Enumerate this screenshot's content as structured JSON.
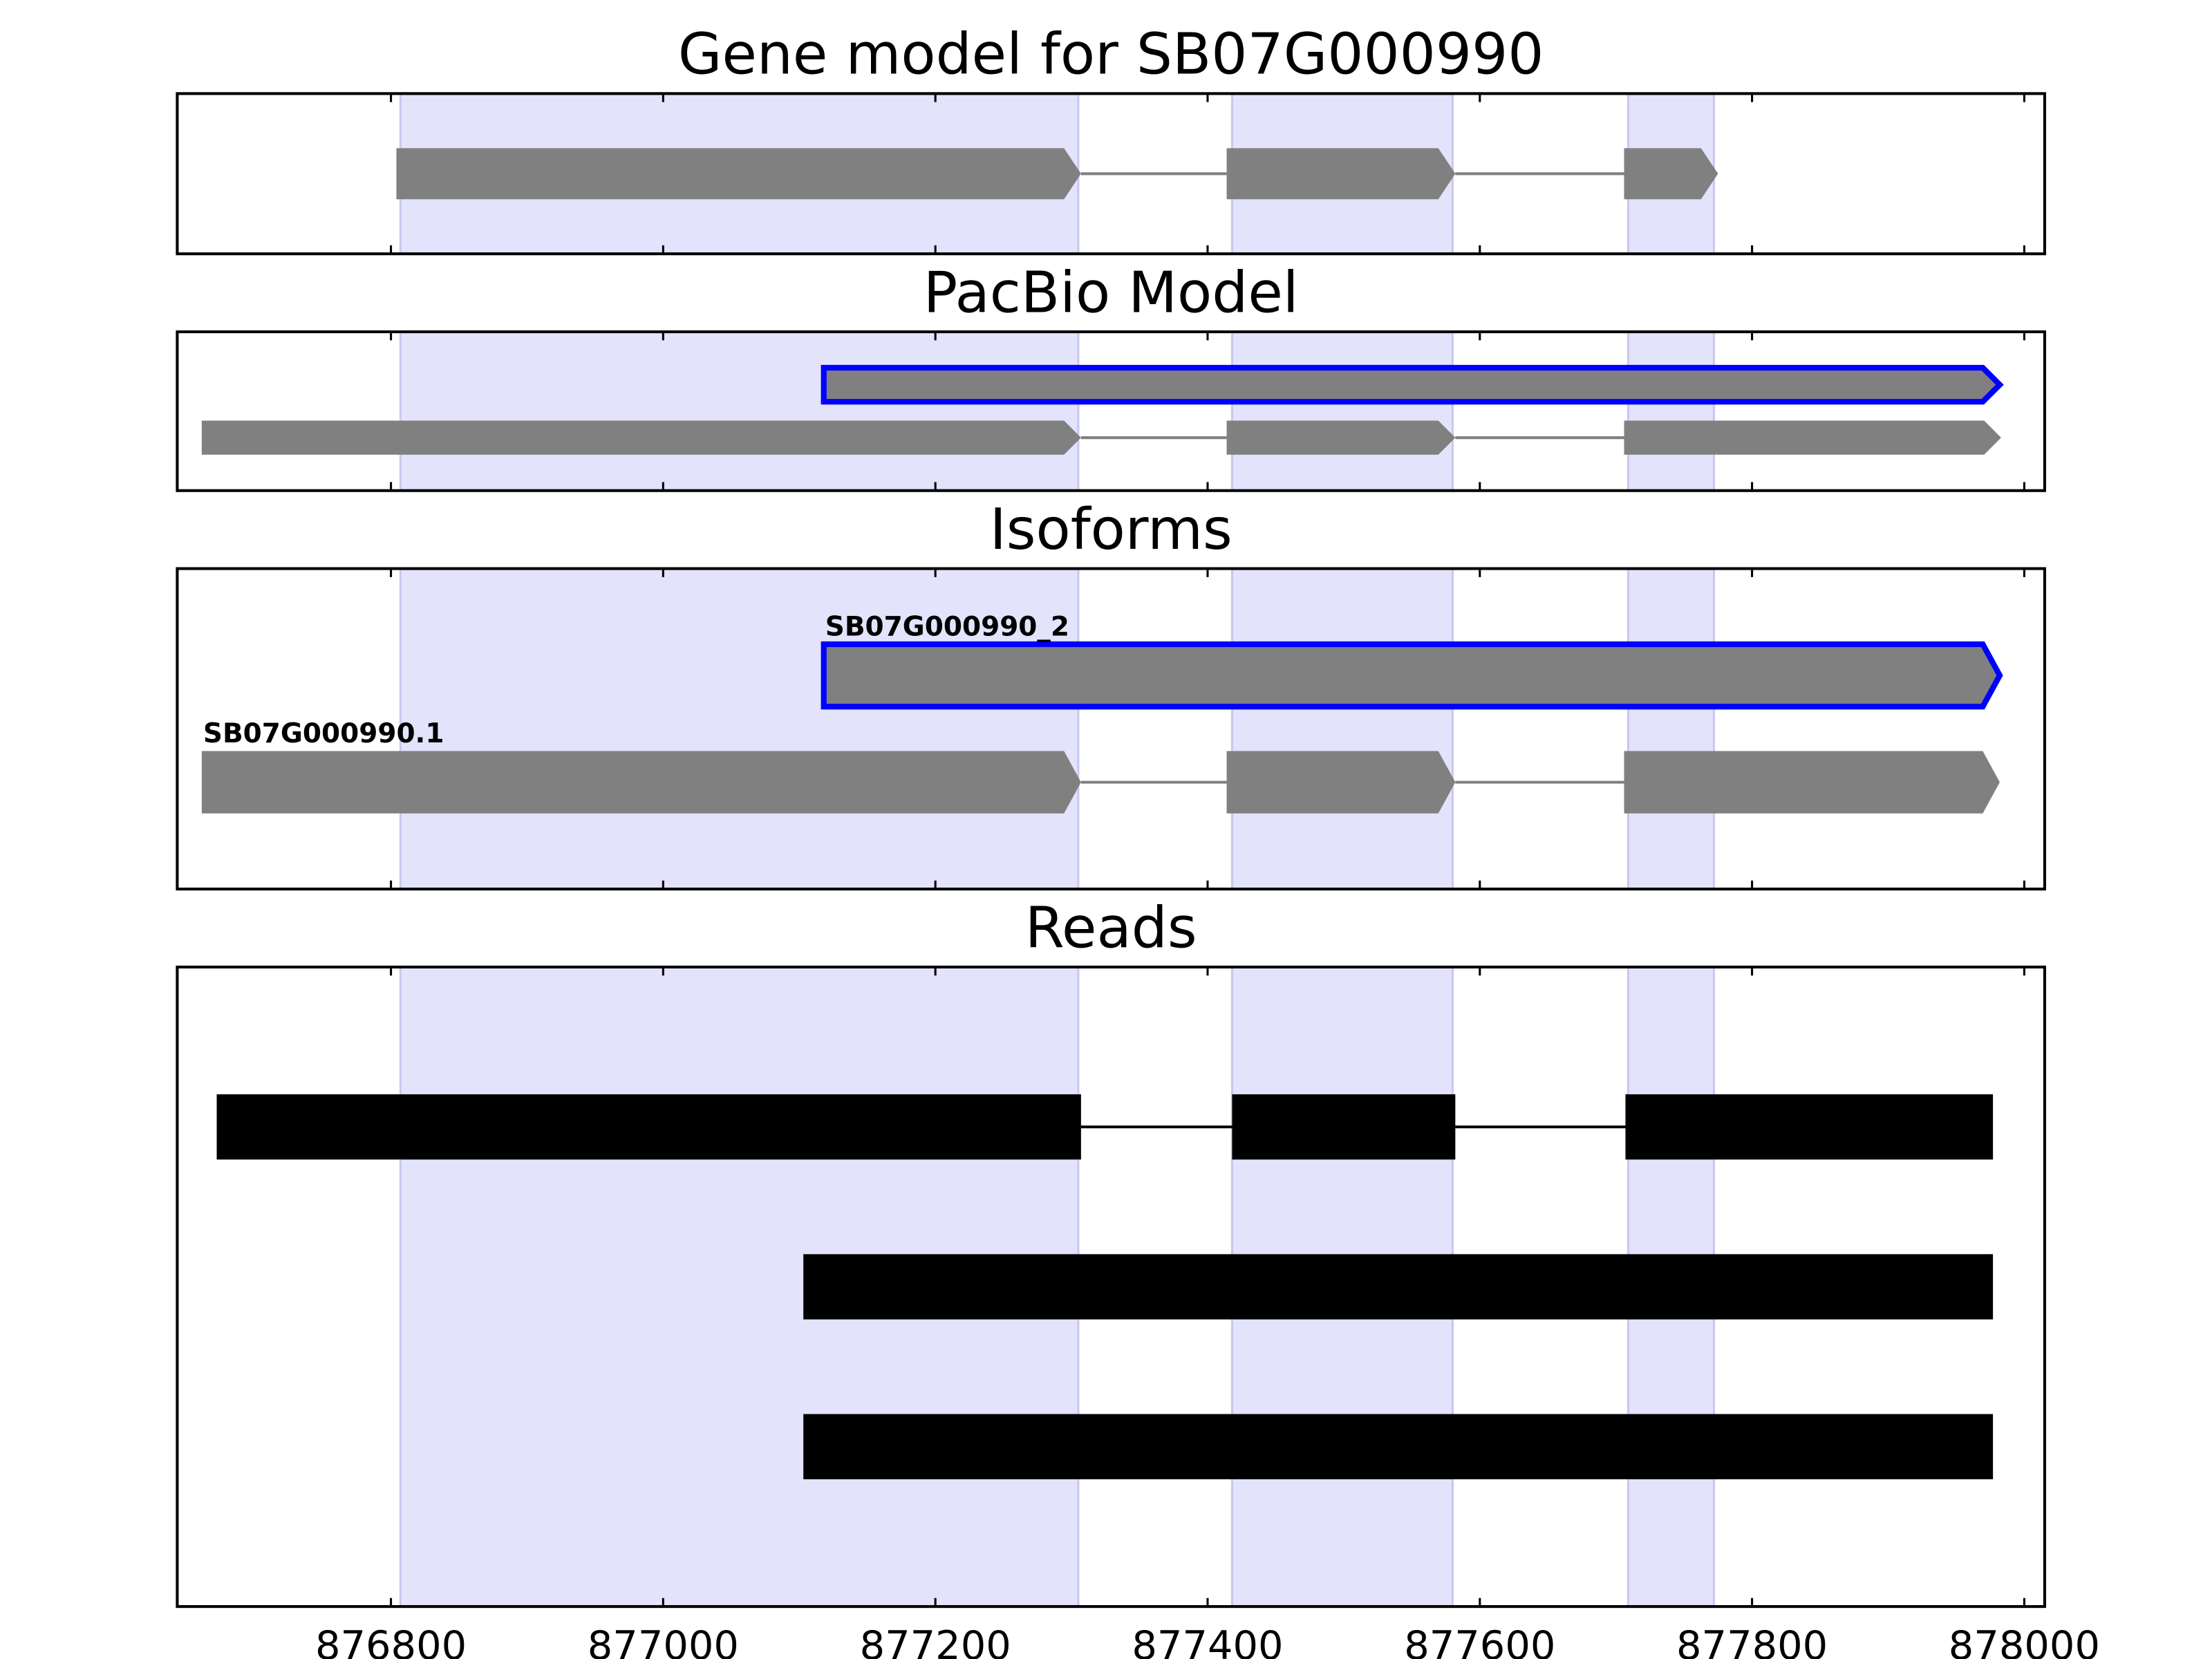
{
  "chart_data": [
    {
      "type": "gene_model",
      "title": "Gene model for SB07G000990",
      "xlim": [
        876643,
        878015
      ],
      "xticks": [
        876800,
        877000,
        877200,
        877400,
        877600,
        877800,
        878000
      ],
      "show_xtick_labels": false,
      "shade_color": "#e3e3fc",
      "shaded_regions": [
        [
          876807,
          877305
        ],
        [
          877418,
          877580
        ],
        [
          877709,
          877772
        ]
      ],
      "color": "#808080",
      "features": [
        {
          "exons": [
            [
              876804,
              877307
            ],
            [
              877414,
              877582
            ],
            [
              877706,
              877775
            ]
          ]
        }
      ]
    },
    {
      "type": "gene_model",
      "title": "PacBio Model",
      "xlim": [
        876643,
        878015
      ],
      "xticks": [
        876800,
        877000,
        877200,
        877400,
        877600,
        877800,
        878000
      ],
      "show_xtick_labels": false,
      "shade_color": "#e3e3fc",
      "shaded_regions": [
        [
          876807,
          877305
        ],
        [
          877418,
          877580
        ],
        [
          877709,
          877772
        ]
      ],
      "color": "#808080",
      "features": [
        {
          "outline": "#0000ff",
          "exons": [
            [
              877118,
              877982
            ]
          ]
        },
        {
          "exons": [
            [
              876661,
              877307
            ],
            [
              877414,
              877582
            ],
            [
              877706,
              877983
            ]
          ]
        }
      ]
    },
    {
      "type": "gene_model",
      "title": "Isoforms",
      "xlim": [
        876643,
        878015
      ],
      "xticks": [
        876800,
        877000,
        877200,
        877400,
        877600,
        877800,
        878000
      ],
      "show_xtick_labels": false,
      "shade_color": "#e3e3fc",
      "shaded_regions": [
        [
          876807,
          877305
        ],
        [
          877418,
          877580
        ],
        [
          877709,
          877772
        ]
      ],
      "color": "#808080",
      "features": [
        {
          "name": "SB07G000990_2",
          "outline": "#0000ff",
          "exons": [
            [
              877118,
              877982
            ]
          ]
        },
        {
          "name": "SB07G000990.1",
          "exons": [
            [
              876661,
              877307
            ],
            [
              877414,
              877582
            ],
            [
              877706,
              877982
            ]
          ]
        }
      ]
    },
    {
      "type": "reads",
      "title": "Reads",
      "xlim": [
        876643,
        878015
      ],
      "xticks": [
        876800,
        877000,
        877200,
        877400,
        877600,
        877800,
        878000
      ],
      "show_xtick_labels": true,
      "shade_color": "#e3e3fc",
      "shaded_regions": [
        [
          876807,
          877305
        ],
        [
          877418,
          877580
        ],
        [
          877709,
          877772
        ]
      ],
      "color": "#000000",
      "features": [
        {
          "exons": [
            [
              876672,
              877307
            ],
            [
              877418,
              877582
            ],
            [
              877707,
              877977
            ]
          ]
        },
        {
          "exons": [
            [
              877103,
              877977
            ]
          ]
        },
        {
          "exons": [
            [
              877103,
              877977
            ]
          ]
        }
      ]
    }
  ]
}
